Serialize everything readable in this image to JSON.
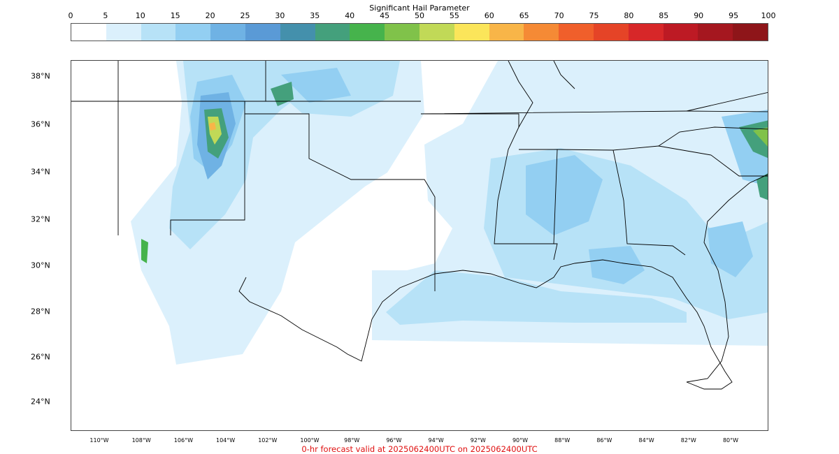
{
  "colorbar": {
    "title": "Significant Hail Parameter",
    "ticks": [
      "0",
      "5",
      "10",
      "15",
      "20",
      "25",
      "30",
      "35",
      "40",
      "45",
      "50",
      "55",
      "60",
      "65",
      "70",
      "75",
      "80",
      "85",
      "90",
      "95",
      "100"
    ],
    "colors": [
      "#ffffff",
      "#dbf0fc",
      "#b7e2f7",
      "#93cff2",
      "#6fb2e4",
      "#5a9ad6",
      "#4490ac",
      "#44a07c",
      "#46b34c",
      "#80c24a",
      "#c1d957",
      "#fbe55a",
      "#f8b548",
      "#f58a35",
      "#f05f2b",
      "#e54427",
      "#d72729",
      "#bd1a24",
      "#a5171f",
      "#8e1519"
    ]
  },
  "map": {
    "lat_labels": [
      "38°N",
      "36°N",
      "34°N",
      "32°N",
      "30°N",
      "28°N",
      "26°N",
      "24°N"
    ],
    "lon_labels": [
      "110°W",
      "108°W",
      "106°W",
      "104°W",
      "102°W",
      "100°W",
      "98°W",
      "96°W",
      "94°W",
      "92°W",
      "90°W",
      "88°W",
      "86°W",
      "84°W",
      "82°W",
      "80°W"
    ],
    "caption": "0-hr forecast valid at 2025062400UTC on 2025062400UTC"
  }
}
